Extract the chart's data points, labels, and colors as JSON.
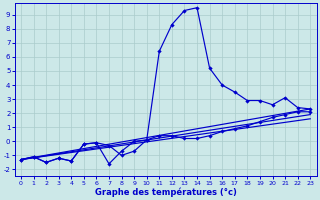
{
  "xlabel": "Graphe des températures (°c)",
  "bg_color": "#cce8e8",
  "line_color": "#0000cc",
  "grid_color": "#aacccc",
  "xlim": [
    -0.5,
    23.5
  ],
  "ylim": [
    -2.5,
    9.8
  ],
  "xticks": [
    0,
    1,
    2,
    3,
    4,
    5,
    6,
    7,
    8,
    9,
    10,
    11,
    12,
    13,
    14,
    15,
    16,
    17,
    18,
    19,
    20,
    21,
    22,
    23
  ],
  "yticks": [
    -2,
    -1,
    0,
    1,
    2,
    3,
    4,
    5,
    6,
    7,
    8,
    9
  ],
  "curve1_x": [
    0,
    1,
    2,
    3,
    4,
    5,
    6,
    7,
    8,
    9,
    10,
    11,
    12,
    13,
    14,
    15,
    16,
    17,
    18,
    19,
    20,
    21,
    22,
    23
  ],
  "curve1_y": [
    -1.3,
    -1.1,
    -1.5,
    -1.2,
    -1.4,
    -0.2,
    -0.1,
    -0.3,
    -1.0,
    -0.7,
    0.1,
    6.4,
    8.3,
    9.3,
    9.5,
    5.2,
    4.0,
    3.5,
    2.9,
    2.9,
    2.6,
    3.1,
    2.4,
    2.3
  ],
  "curve2_x": [
    0,
    1,
    2,
    3,
    4,
    5,
    6,
    7,
    8,
    9,
    10,
    11,
    12,
    13,
    14,
    15,
    16,
    17,
    18,
    19,
    20,
    21,
    22,
    23
  ],
  "curve2_y": [
    -1.3,
    -1.1,
    -1.5,
    -1.2,
    -1.4,
    -0.2,
    -0.1,
    -1.6,
    -0.7,
    0.0,
    0.1,
    0.4,
    0.4,
    0.2,
    0.2,
    0.4,
    0.7,
    0.9,
    1.1,
    1.4,
    1.7,
    1.9,
    2.1,
    2.1
  ],
  "trend1_x": [
    0,
    23
  ],
  "trend1_y": [
    -1.3,
    2.3
  ],
  "trend2_x": [
    0,
    23
  ],
  "trend2_y": [
    -1.3,
    1.9
  ],
  "trend3_x": [
    0,
    23
  ],
  "trend3_y": [
    -1.3,
    1.6
  ]
}
